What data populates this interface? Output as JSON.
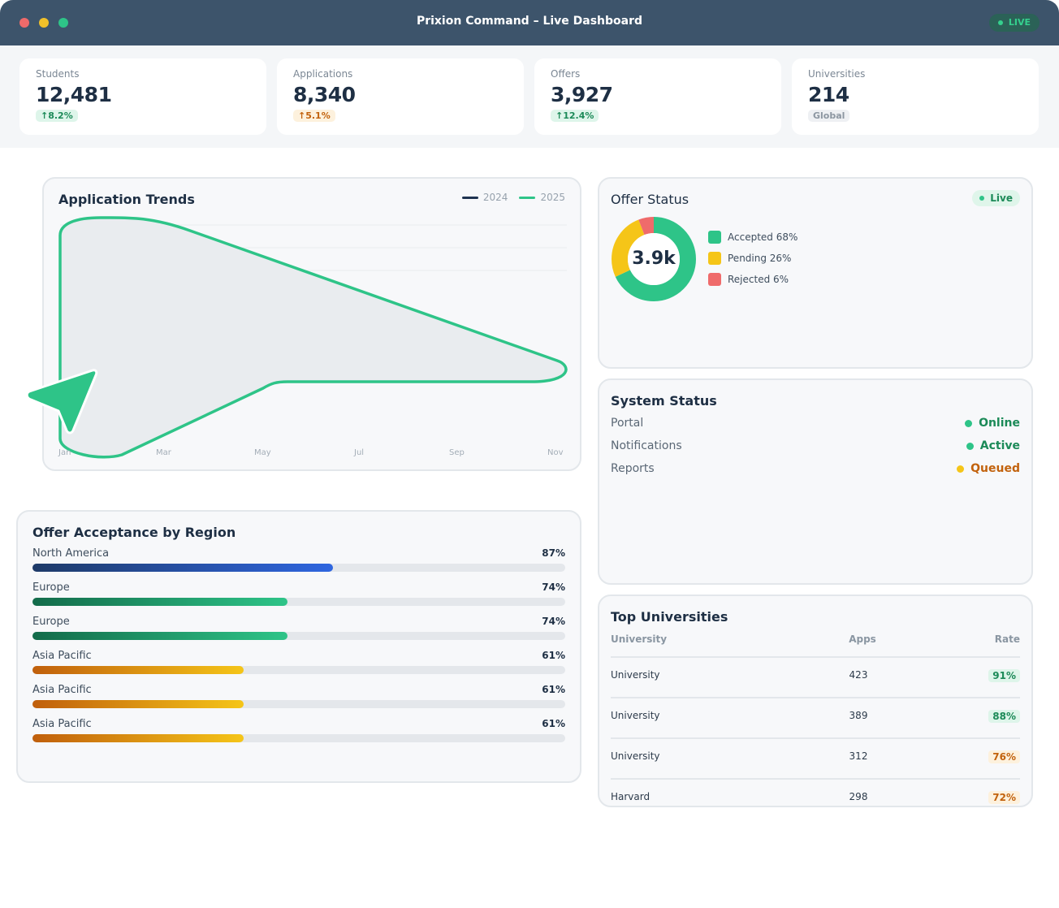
{
  "window": {
    "title": "Prixion Command – Live Dashboard",
    "live_label": "LIVE"
  },
  "stats": [
    {
      "label": "Students",
      "value": "12,481",
      "badge": "↑8.2%",
      "badge_tone": "green"
    },
    {
      "label": "Applications",
      "value": "8,340",
      "badge": "↑5.1%",
      "badge_tone": "orange"
    },
    {
      "label": "Offers",
      "value": "3,927",
      "badge": "↑12.4%",
      "badge_tone": "green"
    },
    {
      "label": "Universities",
      "value": "214",
      "badge": "Global",
      "badge_tone": "gray"
    }
  ],
  "trends": {
    "title": "Application Trends",
    "legend": [
      "2024",
      "2025"
    ],
    "x_labels": [
      "Jan",
      "Mar",
      "May",
      "Jul",
      "Sep",
      "Nov"
    ]
  },
  "offer_status": {
    "title": "Offer Status",
    "live_label": "Live",
    "center_value": "3.9k",
    "legend": [
      {
        "label": "Accepted 68%",
        "color": "#2ec488"
      },
      {
        "label": "Pending 26%",
        "color": "#f5c518"
      },
      {
        "label": "Rejected 6%",
        "color": "#ef6b6b"
      }
    ]
  },
  "system_status": {
    "title": "System Status",
    "rows": [
      {
        "name": "Portal",
        "state": "Online",
        "color": "#1c8a58",
        "dot": "#2ec488"
      },
      {
        "name": "Notifications",
        "state": "Active",
        "color": "#1c8a58",
        "dot": "#2ec488"
      },
      {
        "name": "Reports",
        "state": "Queued",
        "color": "#c2620d",
        "dot": "#f5c518"
      }
    ]
  },
  "regions": {
    "title": "Offer Acceptance by Region",
    "rows": [
      {
        "name": "North America",
        "pct": "87%",
        "fill": 0.564,
        "gradient": "linear-gradient(90deg,#1e3a68,#2f66e0)"
      },
      {
        "name": "Europe",
        "pct": "74%",
        "fill": 0.479,
        "gradient": "linear-gradient(90deg,#136b4a,#2ec488)"
      },
      {
        "name": "Europe",
        "pct": "74%",
        "fill": 0.479,
        "gradient": "linear-gradient(90deg,#136b4a,#2ec488)"
      },
      {
        "name": "Asia Pacific",
        "pct": "61%",
        "fill": 0.396,
        "gradient": "linear-gradient(90deg,#c05f0c,#f5c518)"
      },
      {
        "name": "Asia Pacific",
        "pct": "61%",
        "fill": 0.396,
        "gradient": "linear-gradient(90deg,#c05f0c,#f5c518)"
      },
      {
        "name": "Asia Pacific",
        "pct": "61%",
        "fill": 0.396,
        "gradient": "linear-gradient(90deg,#c05f0c,#f5c518)"
      }
    ]
  },
  "universities": {
    "title": "Top Universities",
    "headers": [
      "University",
      "Apps",
      "Rate"
    ],
    "rows": [
      {
        "name": "University",
        "apps": "423",
        "rate": "91%",
        "tone": "green"
      },
      {
        "name": "University",
        "apps": "389",
        "rate": "88%",
        "tone": "green"
      },
      {
        "name": "University",
        "apps": "312",
        "rate": "76%",
        "tone": "orange"
      },
      {
        "name": "Harvard",
        "apps": "298",
        "rate": "72%",
        "tone": "orange"
      }
    ]
  }
}
